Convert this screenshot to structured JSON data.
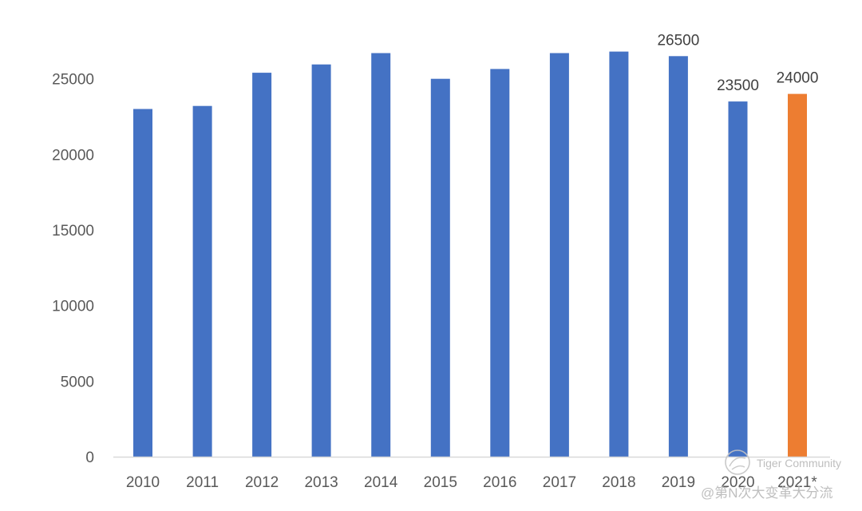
{
  "chart_data": {
    "type": "bar",
    "categories": [
      "2010",
      "2011",
      "2012",
      "2013",
      "2014",
      "2015",
      "2016",
      "2017",
      "2018",
      "2019",
      "2020",
      "2021*"
    ],
    "values": [
      23000,
      23200,
      25400,
      25950,
      26700,
      25000,
      25650,
      26700,
      26800,
      26500,
      23500,
      24000
    ],
    "bar_colors": [
      "#4472c4",
      "#4472c4",
      "#4472c4",
      "#4472c4",
      "#4472c4",
      "#4472c4",
      "#4472c4",
      "#4472c4",
      "#4472c4",
      "#4472c4",
      "#4472c4",
      "#ed7d31"
    ],
    "data_labels": [
      {
        "category": "2019",
        "text": "26500"
      },
      {
        "category": "2020",
        "text": "23500"
      },
      {
        "category": "2021*",
        "text": "24000"
      }
    ],
    "y_ticks": [
      0,
      5000,
      10000,
      15000,
      20000,
      25000
    ],
    "ylim": [
      0,
      30000
    ],
    "title": "",
    "xlabel": "",
    "ylabel": "",
    "grid": false,
    "legend": "none",
    "axis_color": "#d9d9d9"
  },
  "watermark": {
    "brand": "Tiger Community",
    "handle": "@第N次大变革大分流"
  }
}
